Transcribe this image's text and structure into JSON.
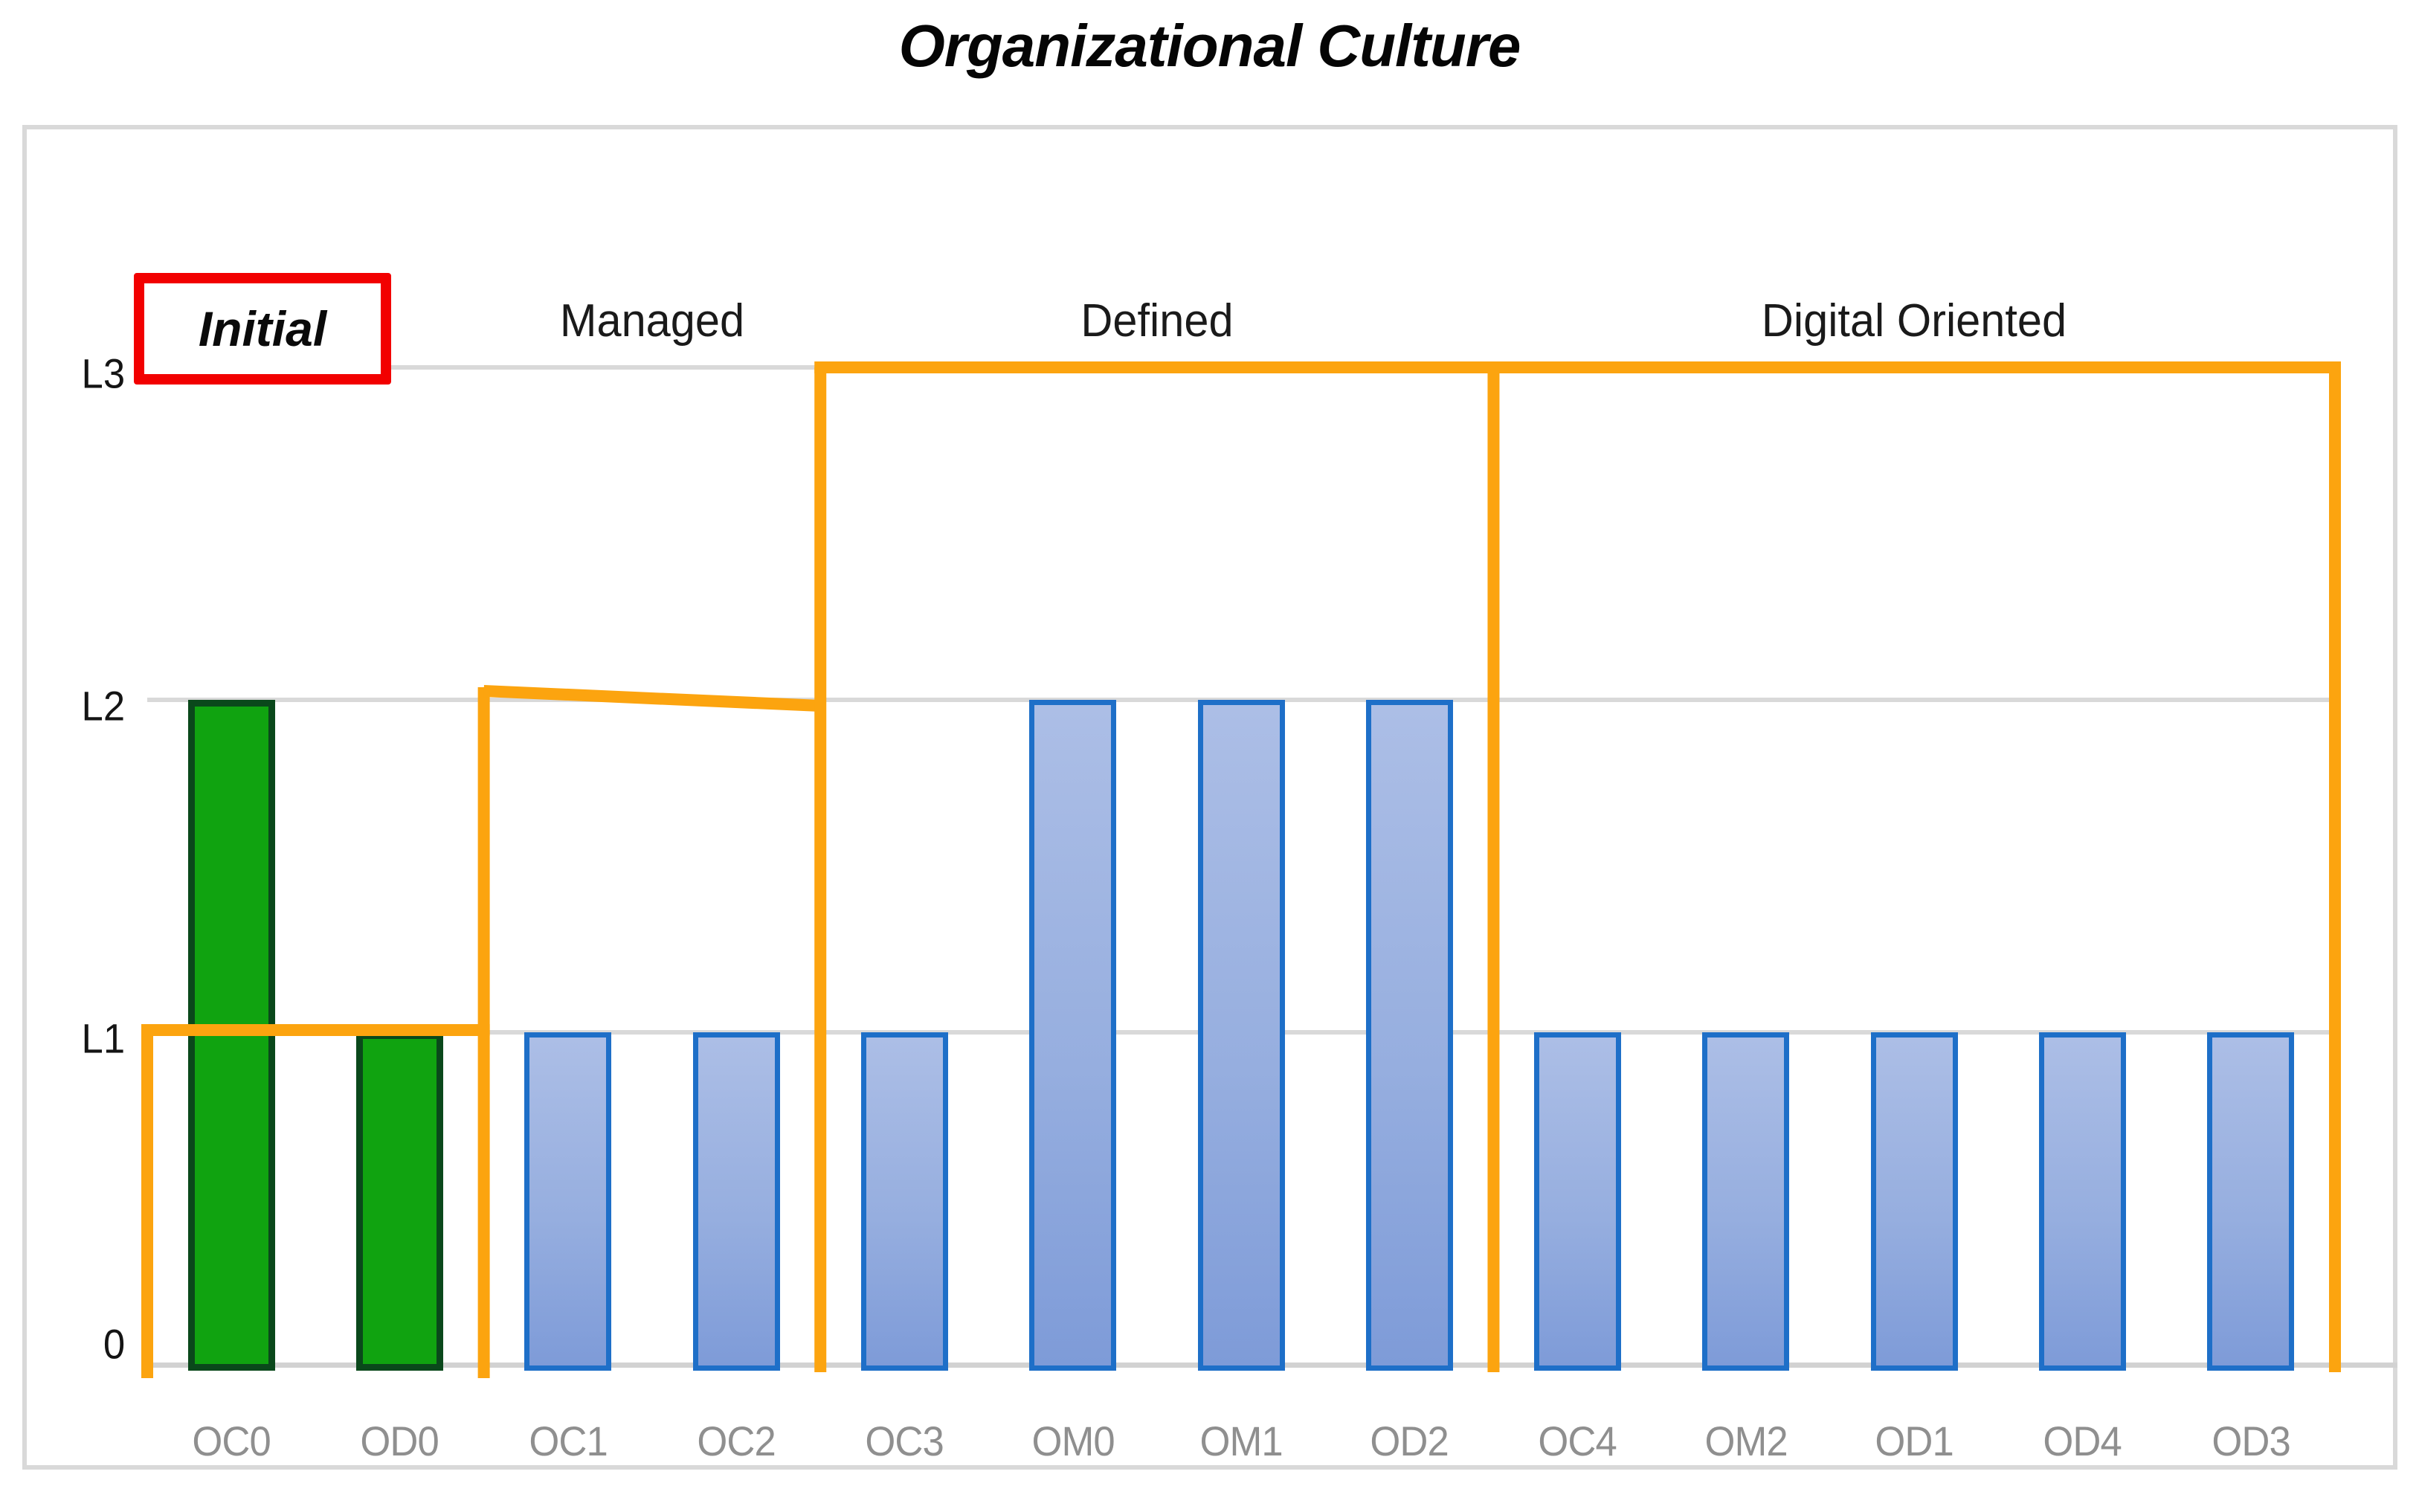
{
  "title": "Organizational Culture",
  "chart_data": {
    "type": "bar",
    "categories": [
      "OC0",
      "OD0",
      "OC1",
      "OC2",
      "OC3",
      "OM0",
      "OM1",
      "OD2",
      "OC4",
      "OM2",
      "OD1",
      "OD4",
      "OD3"
    ],
    "values": [
      2,
      1,
      1,
      1,
      1,
      2,
      2,
      2,
      1,
      1,
      1,
      1,
      1
    ],
    "bar_colors": [
      "green",
      "green",
      "blue",
      "blue",
      "blue",
      "blue",
      "blue",
      "blue",
      "blue",
      "blue",
      "blue",
      "blue",
      "blue"
    ],
    "title": "Organizational Culture",
    "xlabel": "",
    "ylabel": "",
    "y_tick_labels": [
      "0",
      "L1",
      "L2",
      "L3"
    ],
    "ylim": [
      0,
      3
    ],
    "grid": true,
    "legend": false,
    "groups": [
      {
        "label": "Initial",
        "start": 0,
        "end": 1,
        "level": 1,
        "highlighted": true
      },
      {
        "label": "Managed",
        "start": 2,
        "end": 3,
        "level": 2,
        "highlighted": false
      },
      {
        "label": "Defined",
        "start": 4,
        "end": 7,
        "level": 3,
        "highlighted": false
      },
      {
        "label": "Digital Oriented",
        "start": 8,
        "end": 12,
        "level": 3,
        "highlighted": false
      }
    ]
  },
  "colors": {
    "boundary_orange": "#fca40f",
    "highlight_red": "#f20000",
    "green_fill": "#10a310",
    "green_border": "#0a481b",
    "blue_fill_top": "#acbee6",
    "blue_fill_bottom": "#7e9bd8",
    "blue_border": "#1e6fc8",
    "gridline": "#d9d9d9",
    "category_label": "#8f8f8f",
    "tick_label": "#141414"
  }
}
